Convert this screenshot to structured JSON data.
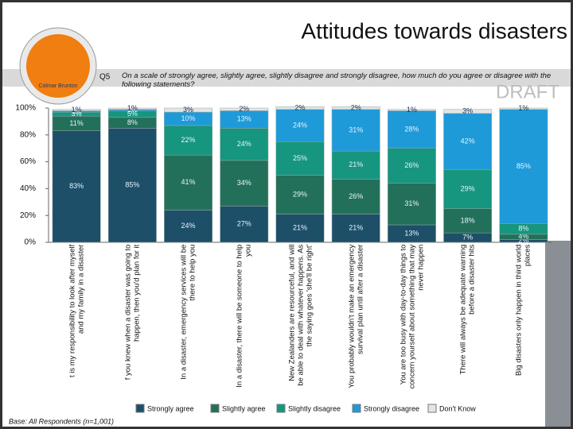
{
  "chart_data": {
    "type": "stacked_bar",
    "title": "Attitudes towards disasters",
    "categories": [
      "t is my responsibility to look after myself and my family in a disaster",
      "f you knew when a disaster was going to happen, then you'd plan for it",
      "In a disaster, emergency services will be there to help you",
      "In a disaster, there will be someone to help you",
      "New Zealanders are resourceful, and will be able to deal with whatever happens. As the saying goes 'she'll be right'",
      "You probably wouldn't make an emergency survival plan until after a disaster",
      "You are too busy with day-to-day things to concern yourself about something that may never happen",
      "There will always be adequate warning before a disaster hits",
      "Big disasters only happen in third world places"
    ],
    "series": [
      {
        "name": "Strongly agree",
        "color": "#1d4f68",
        "values": [
          83,
          85,
          24,
          27,
          21,
          21,
          13,
          7,
          2
        ],
        "value_labels": [
          "83%",
          "85%",
          "24%",
          "27%",
          "21%",
          "21%",
          "13%",
          "7%",
          "2%"
        ]
      },
      {
        "name": "Slightly agree",
        "color": "#23705a",
        "values": [
          11,
          8,
          41,
          34,
          29,
          26,
          31,
          18,
          4
        ],
        "value_labels": [
          "11%",
          "8%",
          "41%",
          "34%",
          "29%",
          "26%",
          "31%",
          "18%",
          "4%"
        ]
      },
      {
        "name": "Slightly disagree",
        "color": "#16957f",
        "values": [
          3,
          5,
          22,
          24,
          25,
          21,
          26,
          29,
          8
        ],
        "value_labels": [
          "3%",
          "5%",
          "22%",
          "24%",
          "25%",
          "21%",
          "26%",
          "29%",
          "8%"
        ]
      },
      {
        "name": "Strongly disagree",
        "color": "#1e9ad8",
        "values": [
          1,
          1,
          10,
          13,
          24,
          31,
          28,
          42,
          85
        ],
        "value_labels": [
          "1%",
          "1%",
          "10%",
          "13%",
          "24%",
          "31%",
          "28%",
          "42%",
          "85%"
        ]
      },
      {
        "name": "Don't Know",
        "color": "#e4e4e4",
        "values": [
          1,
          1,
          3,
          2,
          2,
          2,
          1,
          3,
          1
        ],
        "value_labels": [
          "1%",
          "1%",
          "3%",
          "2%",
          "2%",
          "2%",
          "1%",
          "3%",
          "1%"
        ]
      }
    ],
    "ylim": [
      0,
      100
    ],
    "yticks": [
      {
        "value": 0,
        "label": "0%"
      },
      {
        "value": 20,
        "label": "20%"
      },
      {
        "value": 40,
        "label": "40%"
      },
      {
        "value": 60,
        "label": "60%"
      },
      {
        "value": 80,
        "label": "80%"
      },
      {
        "value": 100,
        "label": "100%"
      }
    ]
  },
  "slide": {
    "logo": "Colmar Brunton",
    "question_number": "Q5",
    "question": "On a scale of strongly agree, slightly agree, slightly disagree and strongly disagree, how much do you agree or disagree with the following statements?",
    "watermark": "DRAFT",
    "footnote": "Base: All Respondents (n=1,001)"
  }
}
